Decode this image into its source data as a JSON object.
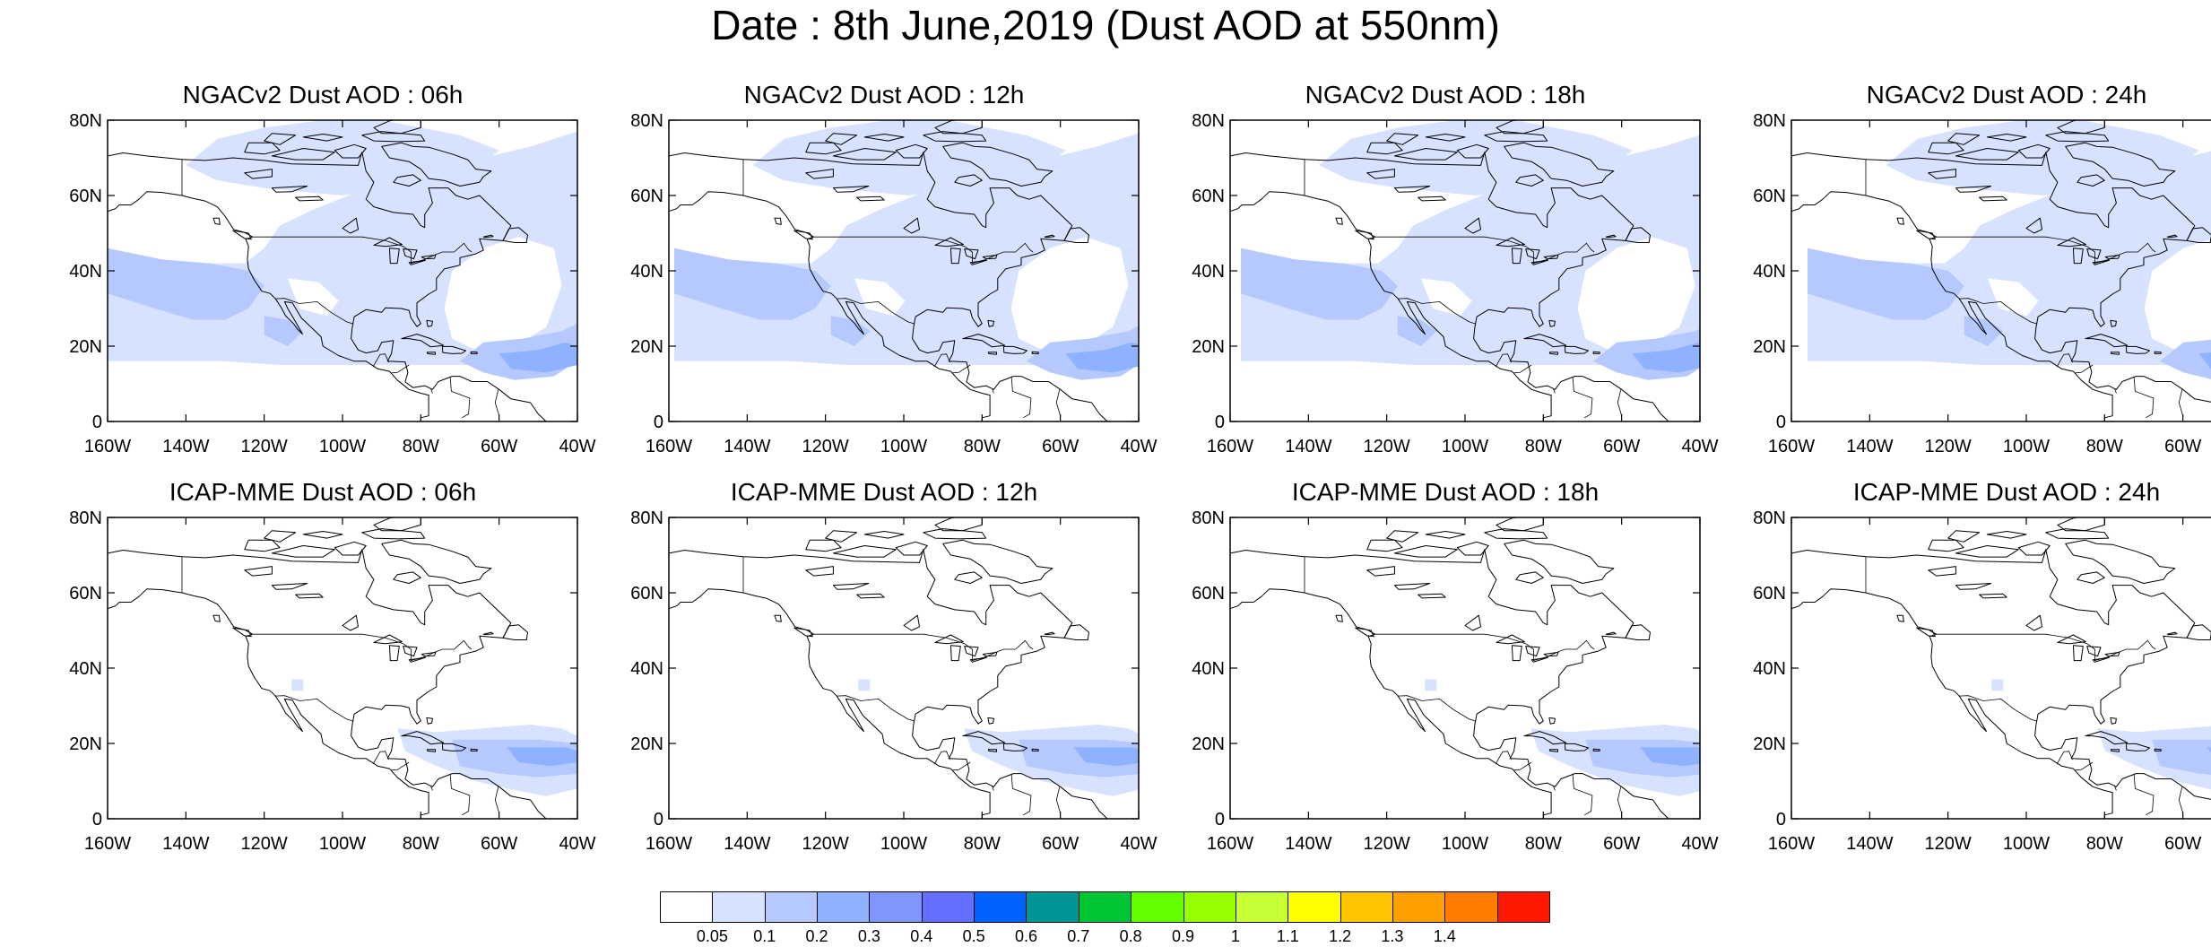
{
  "title": "Date : 8th June,2019 (Dust AOD at 550nm)",
  "axes": {
    "lat_ticks": [
      "80N",
      "60N",
      "40N",
      "20N",
      "0"
    ],
    "lon_ticks": [
      "160W",
      "140W",
      "120W",
      "100W",
      "80W",
      "60W",
      "40W"
    ],
    "lat_range": [
      0,
      80
    ],
    "lon_range": [
      -160,
      -40
    ]
  },
  "panels": [
    {
      "id": "ngac-06",
      "title": "NGACv2 Dust AOD : 06h",
      "row": 0,
      "col": 0,
      "dust": "ngac",
      "shift": 0
    },
    {
      "id": "ngac-12",
      "title": "NGACv2 Dust AOD : 12h",
      "row": 0,
      "col": 1,
      "dust": "ngac",
      "shift": 1
    },
    {
      "id": "ngac-18",
      "title": "NGACv2 Dust AOD : 18h",
      "row": 0,
      "col": 2,
      "dust": "ngac",
      "shift": 2
    },
    {
      "id": "ngac-24",
      "title": "NGACv2 Dust AOD : 24h",
      "row": 0,
      "col": 3,
      "dust": "ngac",
      "shift": 3
    },
    {
      "id": "icap-06",
      "title": "ICAP-MME Dust AOD : 06h",
      "row": 1,
      "col": 0,
      "dust": "icap",
      "shift": 0
    },
    {
      "id": "icap-12",
      "title": "ICAP-MME Dust AOD : 12h",
      "row": 1,
      "col": 1,
      "dust": "icap",
      "shift": 1
    },
    {
      "id": "icap-18",
      "title": "ICAP-MME Dust AOD : 18h",
      "row": 1,
      "col": 2,
      "dust": "icap",
      "shift": 2
    },
    {
      "id": "icap-24",
      "title": "ICAP-MME Dust AOD : 24h",
      "row": 1,
      "col": 3,
      "dust": "icap",
      "shift": 3
    }
  ],
  "colorbar": {
    "colors": [
      "#ffffff",
      "#d6e2ff",
      "#b5c9ff",
      "#8eb2ff",
      "#7f96ff",
      "#6370ff",
      "#0063ff",
      "#009696",
      "#00c633",
      "#63ff00",
      "#96ff00",
      "#c6ff33",
      "#ffff00",
      "#ffc600",
      "#ffa000",
      "#ff7c00",
      "#ff1900"
    ],
    "labels": [
      "0.05",
      "0.1",
      "0.2",
      "0.3",
      "0.4",
      "0.5",
      "0.6",
      "0.7",
      "0.8",
      "0.9",
      "1",
      "1.1",
      "1.2",
      "1.3",
      "1.4"
    ]
  }
}
